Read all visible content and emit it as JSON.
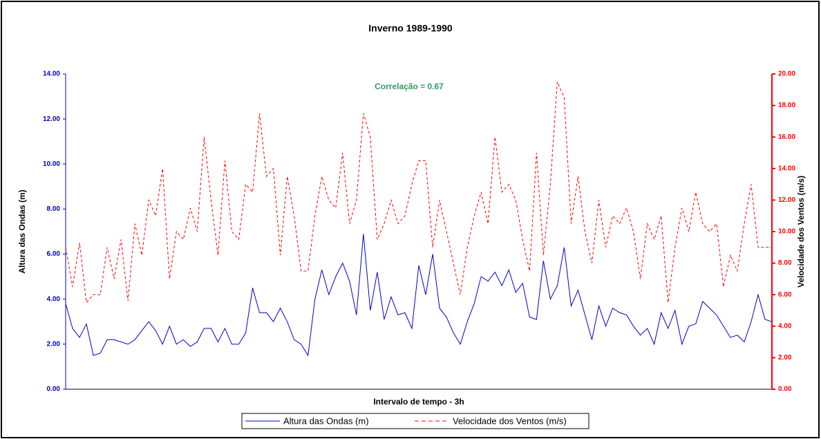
{
  "chart_data": {
    "type": "line",
    "title": "Inverno 1989-1990",
    "annotation": "Correlação = 0.67",
    "xlabel": "Intervalo de tempo - 3h",
    "ylabel": "Altura das Ondas (m)",
    "y2label": "Velocidade dos Ventos (m/s)",
    "categories": [
      null,
      null,
      null,
      null,
      null,
      null,
      null,
      null,
      null,
      null,
      null,
      null,
      null,
      null,
      null,
      null,
      null,
      null,
      null,
      null,
      null,
      null,
      null,
      null,
      null,
      null,
      null,
      null,
      null,
      null,
      null,
      null,
      null,
      null,
      null,
      null,
      null,
      null,
      null,
      null,
      null,
      null,
      null,
      null,
      null,
      null,
      null,
      null,
      null,
      null,
      null,
      null,
      null,
      null,
      null,
      null,
      null,
      null,
      null,
      null,
      null,
      null,
      null,
      null,
      null,
      null,
      null,
      null,
      null,
      null,
      null,
      null,
      null,
      null,
      null,
      null,
      null,
      null,
      null,
      null,
      null,
      null,
      null,
      null,
      null,
      null,
      null,
      null,
      null,
      null,
      null,
      null,
      null,
      null,
      null,
      null,
      null,
      null,
      null,
      null,
      null,
      null,
      null
    ],
    "ylim": [
      0,
      14
    ],
    "yticks": [
      {
        "value": 0,
        "label": "0.00"
      },
      {
        "value": 2,
        "label": "2.00"
      },
      {
        "value": 4,
        "label": "4.00"
      },
      {
        "value": 6,
        "label": "6.00"
      },
      {
        "value": 8,
        "label": "8.00"
      },
      {
        "value": 10,
        "label": "10.00"
      },
      {
        "value": 12,
        "label": "12.00"
      },
      {
        "value": 14,
        "label": "14.00"
      }
    ],
    "y2lim": [
      0,
      20
    ],
    "y2ticks": [
      {
        "value": 0,
        "label": "0.00"
      },
      {
        "value": 2,
        "label": "2.00"
      },
      {
        "value": 4,
        "label": "4.00"
      },
      {
        "value": 6,
        "label": "6.00"
      },
      {
        "value": 8,
        "label": "8.00"
      },
      {
        "value": 10,
        "label": "10.00"
      },
      {
        "value": 12,
        "label": "12.00"
      },
      {
        "value": 14,
        "label": "14.00"
      },
      {
        "value": 16,
        "label": "16.00"
      },
      {
        "value": 18,
        "label": "18.00"
      },
      {
        "value": 20,
        "label": "20.00"
      }
    ],
    "legend": "bottom",
    "series": [
      {
        "name": "Altura das Ondas (m)",
        "color": "#0000cc",
        "dash": "solid",
        "values": [
          3.8,
          2.7,
          2.3,
          2.9,
          1.5,
          1.6,
          2.2,
          2.2,
          2.1,
          2.0,
          2.2,
          2.6,
          3.0,
          2.6,
          2.0,
          2.8,
          2.0,
          2.2,
          1.9,
          2.1,
          2.7,
          2.7,
          2.1,
          2.7,
          2.0,
          2.0,
          2.5,
          4.5,
          3.4,
          3.4,
          3.0,
          3.6,
          3.0,
          2.2,
          2.0,
          1.5,
          4.0,
          5.3,
          4.2,
          5.0,
          5.6,
          4.8,
          3.3,
          6.9,
          3.5,
          5.2,
          3.1,
          4.1,
          3.3,
          3.4,
          2.7,
          5.5,
          4.2,
          6.0,
          3.6,
          3.2,
          2.5,
          2.0,
          3.0,
          3.8,
          5.0,
          4.8,
          5.2,
          4.6,
          5.3,
          4.3,
          4.7,
          3.2,
          3.1,
          5.7,
          4.0,
          4.6,
          6.3,
          3.7,
          4.4,
          3.3,
          2.2,
          3.7,
          2.8,
          3.6,
          3.4,
          3.3,
          2.8,
          2.4,
          2.7,
          2.0,
          3.4,
          2.7,
          3.5,
          2.0,
          2.8,
          2.9,
          3.9,
          3.6,
          3.3,
          2.8,
          2.3,
          2.4,
          2.1,
          3.0,
          4.2,
          3.1,
          3.0
        ]
      },
      {
        "name": "Velocidade dos Ventos (m/s)",
        "color": "#ff0000",
        "dash": "dashed",
        "axis": "y2",
        "values": [
          9.0,
          6.5,
          9.3,
          5.5,
          6.0,
          6.0,
          9.0,
          7.0,
          9.5,
          5.6,
          10.5,
          8.5,
          12.0,
          11.0,
          14.0,
          7.0,
          10.0,
          9.5,
          11.5,
          10.0,
          16.0,
          12.0,
          8.5,
          14.5,
          10.0,
          9.5,
          13.0,
          12.5,
          17.5,
          13.5,
          14.0,
          8.5,
          13.5,
          11.0,
          7.5,
          7.5,
          11.0,
          13.5,
          12.0,
          11.5,
          15.0,
          10.5,
          12.0,
          17.5,
          16.0,
          9.5,
          10.5,
          12.0,
          10.5,
          11.0,
          13.0,
          14.5,
          14.5,
          9.0,
          12.0,
          10.0,
          8.0,
          6.0,
          9.0,
          11.0,
          12.5,
          10.5,
          16.0,
          12.5,
          13.0,
          12.0,
          9.5,
          7.5,
          15.0,
          8.5,
          13.0,
          19.5,
          18.5,
          10.5,
          13.5,
          10.0,
          8.0,
          12.0,
          9.0,
          11.0,
          10.5,
          11.5,
          10.0,
          7.0,
          10.5,
          9.5,
          11.0,
          5.5,
          9.0,
          11.5,
          10.0,
          12.5,
          10.5,
          10.0,
          10.5,
          6.5,
          8.5,
          7.5,
          10.5,
          13.0,
          9.0,
          9.0,
          9.0
        ]
      }
    ]
  }
}
